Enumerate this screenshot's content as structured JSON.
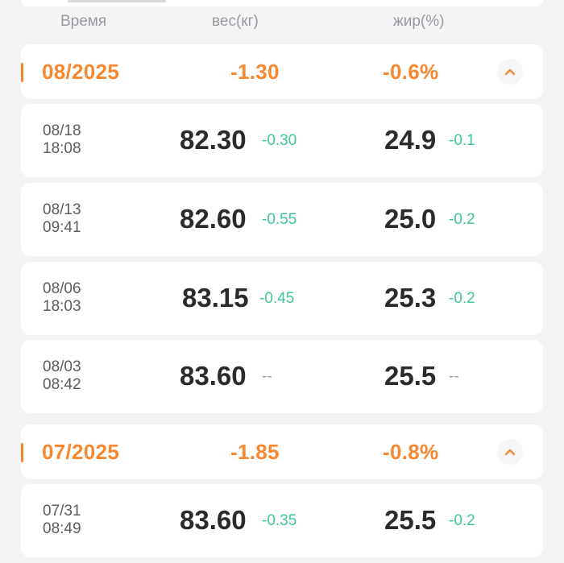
{
  "header": {
    "time": "Время",
    "weight": "вес(кг)",
    "fat": "жир(%)"
  },
  "months": [
    {
      "label": "08/2025",
      "weight_change": "-1.30",
      "fat_change": "-0.6%",
      "entries": [
        {
          "date": "08/18",
          "time": "18:08",
          "weight": "82.30",
          "weight_delta": "-0.30",
          "fat": "24.9",
          "fat_delta": "-0.1"
        },
        {
          "date": "08/13",
          "time": "09:41",
          "weight": "82.60",
          "weight_delta": "-0.55",
          "fat": "25.0",
          "fat_delta": "-0.2"
        },
        {
          "date": "08/06",
          "time": "18:03",
          "weight": "83.15",
          "weight_delta": "-0.45",
          "fat": "25.3",
          "fat_delta": "-0.2"
        },
        {
          "date": "08/03",
          "time": "08:42",
          "weight": "83.60",
          "weight_delta": "--",
          "fat": "25.5",
          "fat_delta": "--"
        }
      ]
    },
    {
      "label": "07/2025",
      "weight_change": "-1.85",
      "fat_change": "-0.8%",
      "entries": [
        {
          "date": "07/31",
          "time": "08:49",
          "weight": "83.60",
          "weight_delta": "-0.35",
          "fat": "25.5",
          "fat_delta": "-0.2"
        }
      ]
    }
  ],
  "colors": {
    "accent": "#f7882f",
    "delta_green": "#3ec795",
    "text_dark": "#2b2b2e",
    "background": "#f4f4f6"
  },
  "icons": {
    "collapse": "chevron-up-icon"
  }
}
